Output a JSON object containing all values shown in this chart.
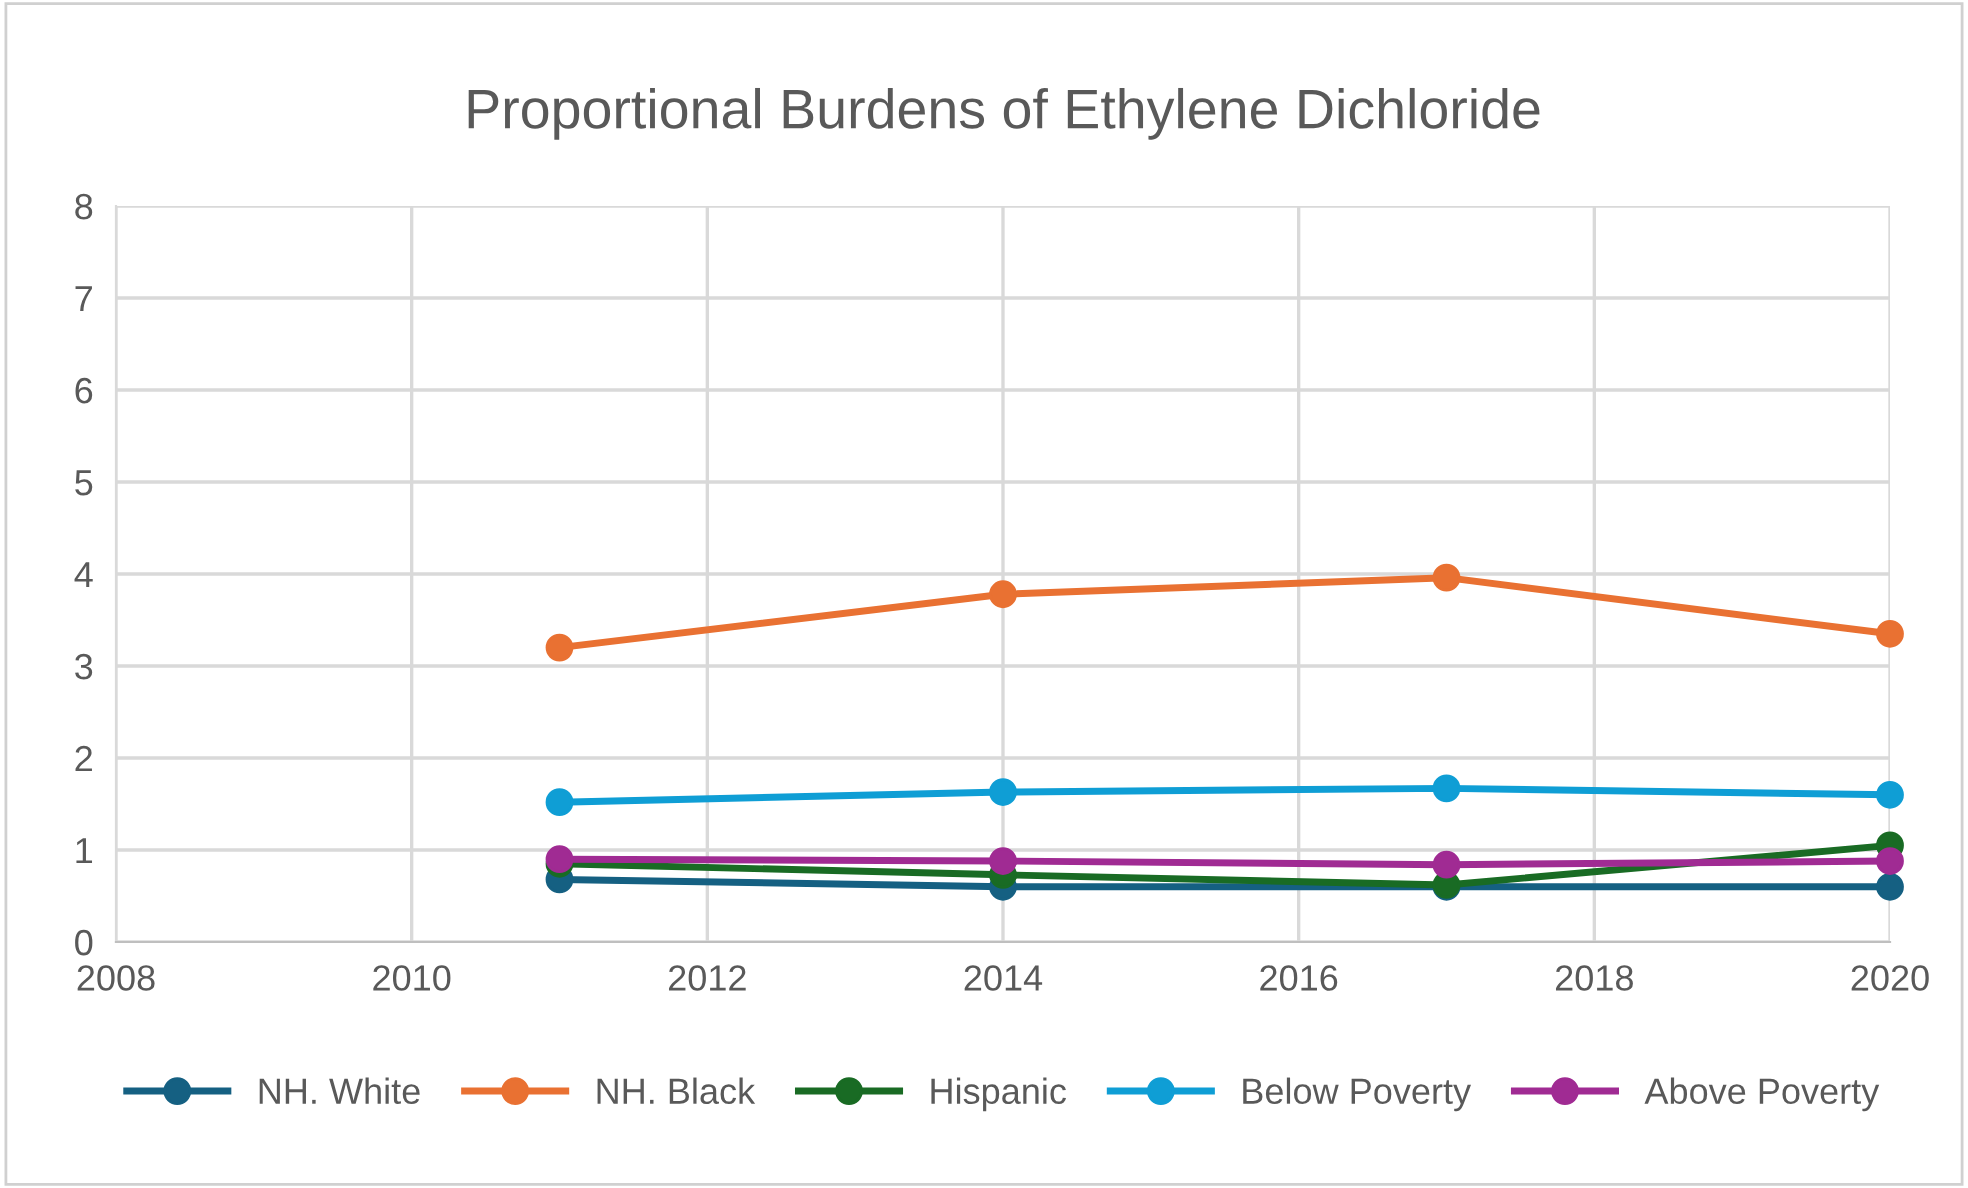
{
  "chart_data": {
    "type": "line",
    "title": "Proportional Burdens of Ethylene Dichloride",
    "x": [
      2011,
      2014,
      2017,
      2020
    ],
    "series": [
      {
        "name": "NH. White",
        "color": "#156082",
        "values": [
          0.68,
          0.6,
          0.6,
          0.6
        ]
      },
      {
        "name": "NH. Black",
        "color": "#e97132",
        "values": [
          3.2,
          3.78,
          3.96,
          3.35
        ]
      },
      {
        "name": "Hispanic",
        "color": "#196b24",
        "values": [
          0.85,
          0.73,
          0.62,
          1.05
        ]
      },
      {
        "name": "Below Poverty",
        "color": "#0f9ed5",
        "values": [
          1.52,
          1.63,
          1.67,
          1.6
        ]
      },
      {
        "name": "Above Poverty",
        "color": "#a02b93",
        "values": [
          0.9,
          0.88,
          0.84,
          0.88
        ]
      }
    ],
    "xlim": [
      2008,
      2020
    ],
    "xticks": [
      2008,
      2010,
      2012,
      2014,
      2016,
      2018,
      2020
    ],
    "ylim": [
      0,
      8
    ],
    "yticks": [
      0,
      1,
      2,
      3,
      4,
      5,
      6,
      7,
      8
    ],
    "grid": true,
    "legend": "bottom",
    "marker": "circle",
    "line_style": "solid"
  }
}
